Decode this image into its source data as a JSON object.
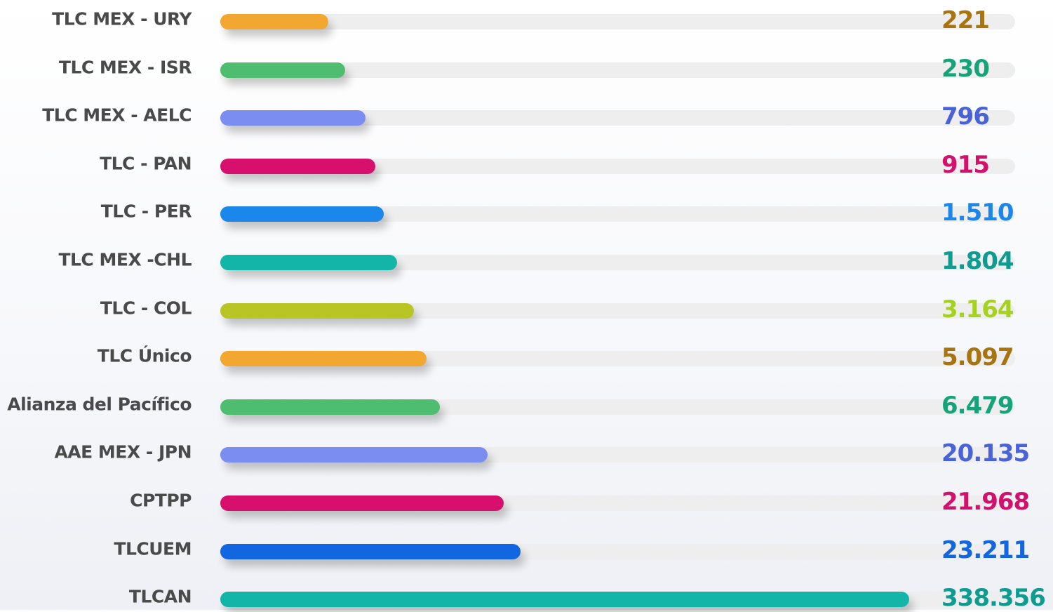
{
  "chart_data": {
    "type": "bar",
    "orientation": "horizontal",
    "title": "",
    "xlabel": "",
    "ylabel": "",
    "grid": false,
    "legend": "none",
    "categories": [
      "TLC MEX - URY",
      "TLC MEX - ISR",
      "TLC MEX - AELC",
      "TLC - PAN",
      "TLC - PER",
      "TLC MEX -CHL",
      "TLC - COL",
      "TLC Único",
      "Alianza del Pacífico",
      "AAE MEX - JPN",
      "CPTPP",
      "TLCUEM",
      "TLCAN"
    ],
    "values": [
      221,
      230,
      796,
      915,
      1510,
      1804,
      3164,
      5097,
      6479,
      20135,
      21968,
      23211,
      338356
    ],
    "value_labels": [
      "221",
      "230",
      "796",
      "915",
      "1.510",
      "1.804",
      "3.164",
      "5.097",
      "6.479",
      "20.135",
      "21.968",
      "23.211",
      "338.356"
    ],
    "bar_fraction": [
      0.136,
      0.157,
      0.183,
      0.195,
      0.206,
      0.223,
      0.244,
      0.26,
      0.277,
      0.337,
      0.357,
      0.378,
      0.868
    ],
    "bar_colors": [
      "#f2a830",
      "#4fbd6f",
      "#7b8df0",
      "#d7106e",
      "#1b87ea",
      "#14b5a9",
      "#b9c524",
      "#f2a830",
      "#4fbd6f",
      "#7b8df0",
      "#d7106e",
      "#1266e0",
      "#14b5a9"
    ],
    "value_colors": [
      "#a8740f",
      "#16a37a",
      "#4a62d8",
      "#d2116f",
      "#1b87ea",
      "#0f9c90",
      "#a5d21d",
      "#a8740f",
      "#16a37a",
      "#4a62d8",
      "#d2116f",
      "#1266e0",
      "#0f9c90"
    ]
  }
}
